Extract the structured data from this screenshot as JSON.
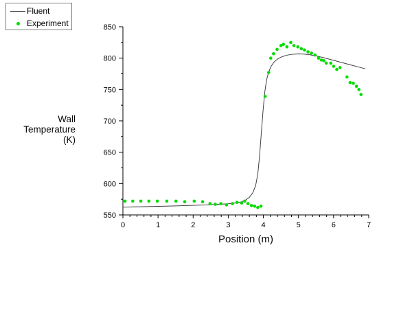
{
  "legend": {
    "items": [
      {
        "label": "Fluent",
        "symbol": "line"
      },
      {
        "label": "Experiment",
        "symbol": "dot"
      }
    ]
  },
  "chart_data": {
    "type": "line",
    "title": "",
    "xlabel": "Position (m)",
    "ylabel": "Wall Temperature (K)",
    "ylabel_lines": [
      "Wall",
      "Temperature",
      "(K)"
    ],
    "xlim": [
      0,
      7
    ],
    "ylim": [
      550,
      850
    ],
    "x_major_ticks": [
      0,
      1,
      2,
      3,
      4,
      5,
      6,
      7
    ],
    "x_minor_step": 0.2,
    "y_major_ticks": [
      550,
      600,
      650,
      700,
      750,
      800,
      850
    ],
    "y_minor_step": 25,
    "grid": false,
    "legend_position": "top-left",
    "series": [
      {
        "name": "Fluent",
        "type": "line",
        "color": "#3f3f3f",
        "points": [
          [
            0,
            562.5
          ],
          [
            0.3,
            562.8
          ],
          [
            0.6,
            563.2
          ],
          [
            0.9,
            563.6
          ],
          [
            1.2,
            564
          ],
          [
            1.5,
            564.4
          ],
          [
            1.8,
            564.9
          ],
          [
            2.1,
            565.4
          ],
          [
            2.4,
            566
          ],
          [
            2.7,
            566.8
          ],
          [
            3.0,
            567.8
          ],
          [
            3.2,
            569
          ],
          [
            3.35,
            570.5
          ],
          [
            3.5,
            574
          ],
          [
            3.6,
            578
          ],
          [
            3.7,
            585.5
          ],
          [
            3.78,
            597
          ],
          [
            3.84,
            615
          ],
          [
            3.89,
            643
          ],
          [
            3.94,
            680
          ],
          [
            3.99,
            716
          ],
          [
            4.04,
            746
          ],
          [
            4.09,
            765
          ],
          [
            4.15,
            778
          ],
          [
            4.22,
            787
          ],
          [
            4.3,
            793.5
          ],
          [
            4.4,
            798.5
          ],
          [
            4.5,
            801.5
          ],
          [
            4.65,
            804.5
          ],
          [
            4.8,
            806
          ],
          [
            5.0,
            806.8
          ],
          [
            5.15,
            806.5
          ],
          [
            5.3,
            805.6
          ],
          [
            5.5,
            803.5
          ],
          [
            5.7,
            801
          ],
          [
            5.9,
            798
          ],
          [
            6.1,
            795
          ],
          [
            6.3,
            792
          ],
          [
            6.5,
            789
          ],
          [
            6.7,
            786
          ],
          [
            6.9,
            783
          ]
        ]
      },
      {
        "name": "Experiment",
        "type": "scatter",
        "color": "#00dc00",
        "points": [
          [
            0.06,
            572
          ],
          [
            0.28,
            572
          ],
          [
            0.51,
            572
          ],
          [
            0.74,
            572
          ],
          [
            0.98,
            572
          ],
          [
            1.25,
            572
          ],
          [
            1.51,
            572
          ],
          [
            1.76,
            571
          ],
          [
            2.03,
            572
          ],
          [
            2.27,
            571
          ],
          [
            2.48,
            568
          ],
          [
            2.63,
            567
          ],
          [
            2.79,
            568
          ],
          [
            2.95,
            566
          ],
          [
            3.12,
            568
          ],
          [
            3.25,
            570
          ],
          [
            3.38,
            569
          ],
          [
            3.47,
            572
          ],
          [
            3.56,
            568
          ],
          [
            3.66,
            565
          ],
          [
            3.75,
            564
          ],
          [
            3.84,
            562
          ],
          [
            3.93,
            564
          ],
          [
            4.05,
            739
          ],
          [
            4.15,
            777
          ],
          [
            4.21,
            800
          ],
          [
            4.29,
            807
          ],
          [
            4.39,
            814
          ],
          [
            4.5,
            820
          ],
          [
            4.57,
            822
          ],
          [
            4.67,
            818
          ],
          [
            4.78,
            825
          ],
          [
            4.87,
            820
          ],
          [
            4.98,
            818
          ],
          [
            5.08,
            815
          ],
          [
            5.17,
            813
          ],
          [
            5.27,
            810
          ],
          [
            5.37,
            808
          ],
          [
            5.47,
            805
          ],
          [
            5.57,
            800
          ],
          [
            5.65,
            797
          ],
          [
            5.72,
            796
          ],
          [
            5.79,
            792
          ],
          [
            5.92,
            792
          ],
          [
            6.0,
            787
          ],
          [
            6.09,
            782
          ],
          [
            6.18,
            785
          ],
          [
            6.38,
            770
          ],
          [
            6.47,
            761
          ],
          [
            6.56,
            760
          ],
          [
            6.65,
            755
          ],
          [
            6.72,
            750
          ],
          [
            6.78,
            742
          ]
        ]
      }
    ]
  }
}
